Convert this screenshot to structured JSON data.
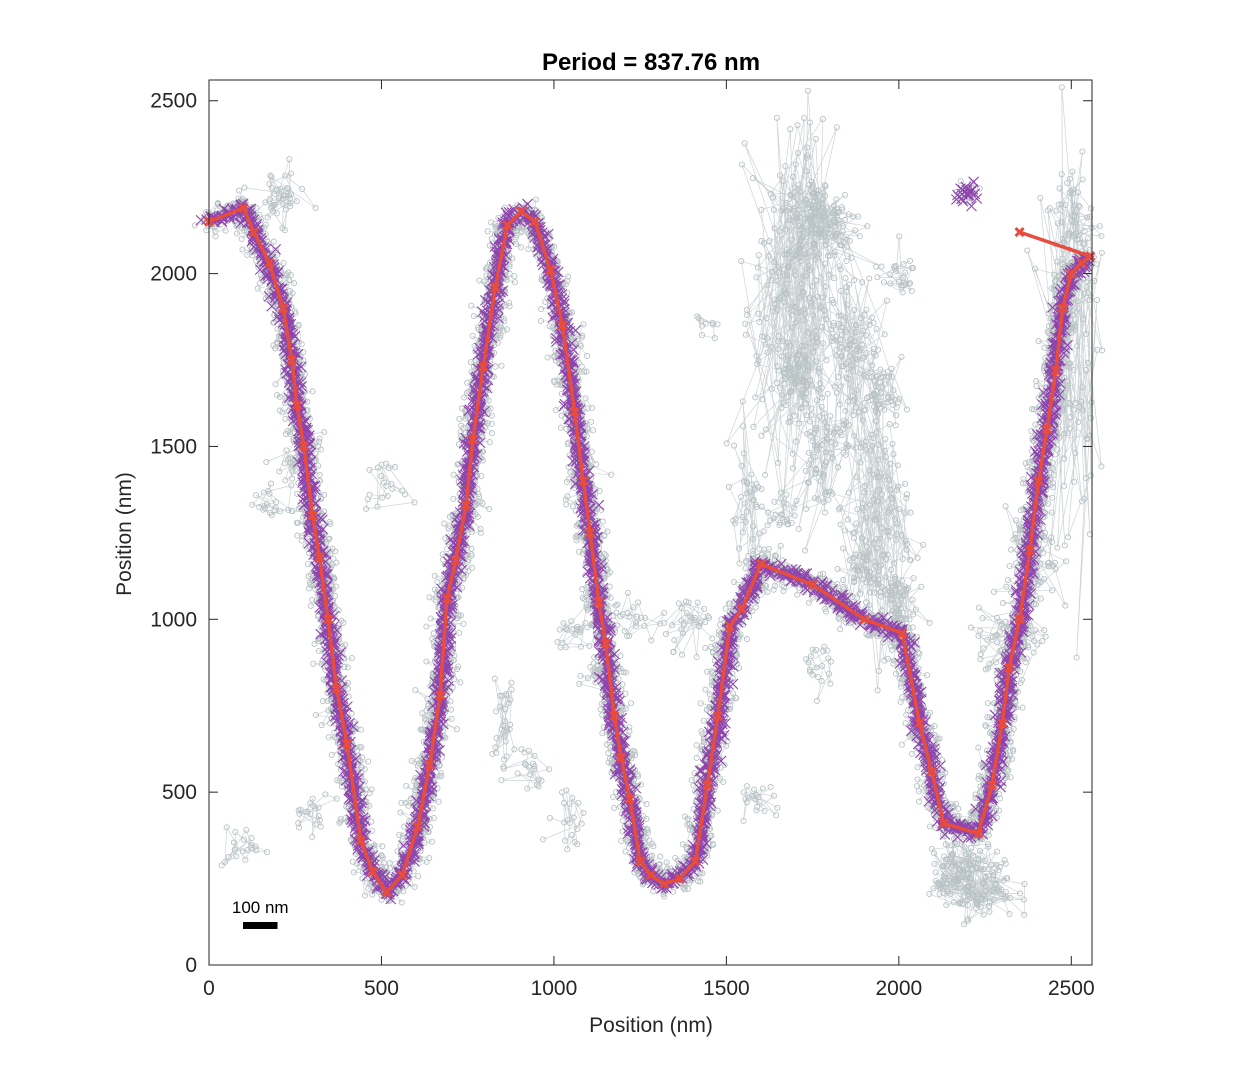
{
  "chart_data": {
    "type": "scatter",
    "title": "Period = 837.76 nm",
    "xlabel": "Position (nm)",
    "ylabel": "Position (nm)",
    "xlim": [
      0,
      2560
    ],
    "ylim": [
      0,
      2560
    ],
    "x_ticks": [
      0,
      500,
      1000,
      1500,
      2000,
      2500
    ],
    "y_ticks": [
      0,
      500,
      1000,
      1500,
      2000,
      2500
    ],
    "grid": false,
    "scale_bar": {
      "label": "100 nm",
      "length": 100
    },
    "colors": {
      "raw": "#b8c2c4",
      "cluster": "#8e44ad",
      "trace": "#e74c3c",
      "axis": "#262626"
    },
    "series": [
      {
        "role": "trace",
        "x": [
          0,
          100,
          130,
          175,
          215,
          240,
          255,
          275,
          300,
          320,
          345,
          370,
          400,
          440,
          475,
          515,
          560,
          605,
          640,
          670,
          690,
          715,
          745,
          765,
          795,
          830,
          865,
          905,
          945,
          990,
          1025,
          1060,
          1085,
          1105,
          1130,
          1150,
          1175,
          1195,
          1220,
          1250,
          1280,
          1320,
          1365,
          1410,
          1445,
          1475,
          1510,
          1545,
          1600,
          1750,
          1900,
          2010,
          2060,
          2095,
          2130,
          2230,
          2270,
          2300,
          2320,
          2350,
          2380,
          2405,
          2430,
          2455,
          2475,
          2500,
          2530,
          2555,
          2350
        ],
        "y": [
          2150,
          2190,
          2120,
          2030,
          1900,
          1750,
          1620,
          1500,
          1300,
          1180,
          1000,
          800,
          640,
          360,
          270,
          210,
          260,
          400,
          580,
          780,
          1060,
          1170,
          1330,
          1520,
          1730,
          1960,
          2140,
          2180,
          2150,
          2010,
          1850,
          1600,
          1400,
          1250,
          1050,
          930,
          720,
          600,
          480,
          300,
          260,
          235,
          250,
          300,
          520,
          720,
          980,
          1030,
          1160,
          1100,
          1000,
          960,
          700,
          560,
          410,
          380,
          520,
          700,
          860,
          1000,
          1200,
          1400,
          1550,
          1720,
          1900,
          2000,
          2030,
          2050,
          2120
        ]
      }
    ]
  }
}
